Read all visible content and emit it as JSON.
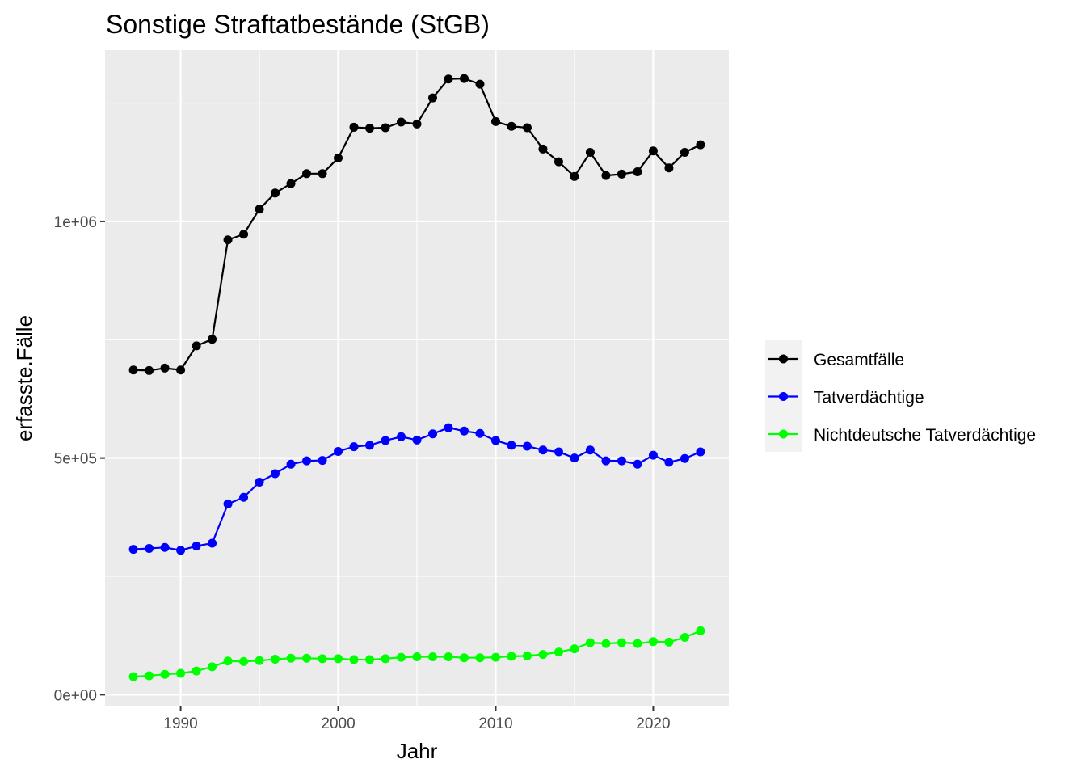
{
  "chart_data": {
    "type": "line",
    "title": "Sonstige Straftatbestände (StGB)",
    "xlabel": "Jahr",
    "ylabel": "erfasste.Fälle",
    "xlim": [
      1985.2,
      2024.8
    ],
    "ylim": [
      -25000,
      1362000
    ],
    "x_ticks": [
      1990,
      2000,
      2010,
      2020
    ],
    "x_tick_labels": [
      "1990",
      "2000",
      "2010",
      "2020"
    ],
    "y_ticks": [
      0,
      500000,
      1000000
    ],
    "y_tick_labels": [
      "0e+00",
      "5e+05",
      "1e+06"
    ],
    "grid": true,
    "legend_position": "right",
    "x": [
      1987,
      1988,
      1989,
      1990,
      1991,
      1992,
      1993,
      1994,
      1995,
      1996,
      1997,
      1998,
      1999,
      2000,
      2001,
      2002,
      2003,
      2004,
      2005,
      2006,
      2007,
      2008,
      2009,
      2010,
      2011,
      2012,
      2013,
      2014,
      2015,
      2016,
      2017,
      2018,
      2019,
      2020,
      2021,
      2022,
      2023
    ],
    "series": [
      {
        "name": "Gesamtfälle",
        "color": "#000000",
        "values": [
          686000,
          685000,
          690000,
          686000,
          737000,
          751000,
          961000,
          973000,
          1026000,
          1060000,
          1080000,
          1101000,
          1101000,
          1134000,
          1199000,
          1197000,
          1198000,
          1210000,
          1206000,
          1261000,
          1301000,
          1302000,
          1290000,
          1211000,
          1201000,
          1198000,
          1153000,
          1126000,
          1095000,
          1146000,
          1097000,
          1100000,
          1105000,
          1149000,
          1113000,
          1146000,
          1162000
        ]
      },
      {
        "name": "Tatverdächtige",
        "color": "#0000ff",
        "values": [
          307000,
          309000,
          311000,
          305000,
          314000,
          320000,
          403000,
          417000,
          449000,
          467000,
          487000,
          494000,
          495000,
          514000,
          524000,
          527000,
          537000,
          545000,
          538000,
          551000,
          564000,
          557000,
          552000,
          537000,
          527000,
          525000,
          517000,
          513000,
          500000,
          517000,
          494000,
          494000,
          487000,
          506000,
          491000,
          499000,
          513000
        ]
      },
      {
        "name": "Nichtdeutsche Tatverdächtige",
        "color": "#00ff00",
        "values": [
          38000,
          40000,
          43000,
          45000,
          50000,
          59000,
          71000,
          70000,
          72000,
          75000,
          77000,
          77000,
          76000,
          76000,
          74000,
          74000,
          76000,
          79000,
          80000,
          80000,
          80000,
          78000,
          78000,
          79000,
          81000,
          82000,
          85000,
          90000,
          97000,
          110000,
          108000,
          110000,
          108000,
          112000,
          111000,
          121000,
          135000
        ]
      }
    ]
  }
}
